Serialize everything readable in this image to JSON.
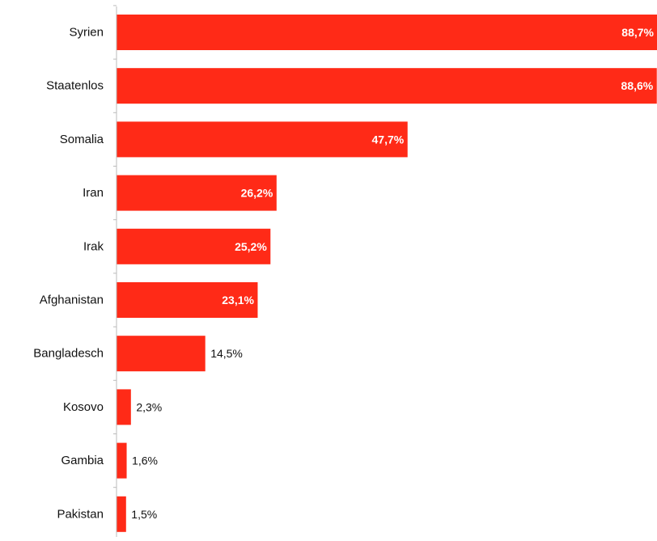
{
  "chart_data": {
    "type": "bar",
    "orientation": "horizontal",
    "categories": [
      "Syrien",
      "Staatenlos",
      "Somalia",
      "Iran",
      "Irak",
      "Afghanistan",
      "Bangladesch",
      "Kosovo",
      "Gambia",
      "Pakistan"
    ],
    "values": [
      88.7,
      88.6,
      47.7,
      26.2,
      25.2,
      23.1,
      14.5,
      2.3,
      1.6,
      1.5
    ],
    "value_labels": [
      "88,7%",
      "88,6%",
      "47,7%",
      "26,2%",
      "25,2%",
      "23,1%",
      "14,5%",
      "2,3%",
      "1,6%",
      "1,5%"
    ],
    "title": "",
    "xlabel": "",
    "ylabel": "",
    "xlim": [
      0,
      88.7
    ],
    "grid": false,
    "legend": "none",
    "bar_color": "#ff2a17",
    "label_color": "#111111",
    "inside_label_color": "#ffffff",
    "axis_color": "#bbbbbb"
  }
}
